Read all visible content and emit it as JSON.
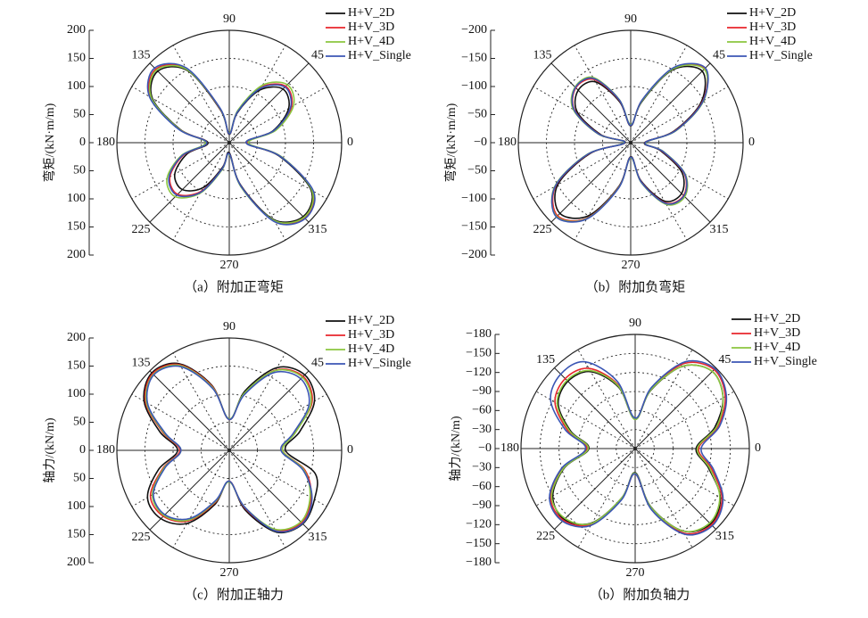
{
  "chart_data": [
    {
      "type": "polar",
      "caption": "（a）附加正弯矩",
      "ylabel": "弯矩/(kN·m/m)",
      "legend": "upper right",
      "x": [
        0,
        15,
        30,
        45,
        60,
        75,
        90,
        105,
        120,
        135,
        150,
        165,
        180,
        195,
        210,
        225,
        240,
        255,
        270,
        285,
        300,
        315,
        330,
        345
      ],
      "xticks": [
        0,
        45,
        90,
        135,
        180,
        225,
        270,
        315
      ],
      "ylim": [
        0,
        200
      ],
      "yticks": [
        0,
        50,
        100,
        150,
        200
      ],
      "series": [
        {
          "name": "H+V_2D",
          "color": "#111111",
          "values": [
            30,
            80,
            122,
            135,
            108,
            55,
            15,
            60,
            148,
            180,
            158,
            90,
            38,
            78,
            112,
            118,
            92,
            45,
            18,
            78,
            158,
            186,
            168,
            92
          ]
        },
        {
          "name": "H+V_3D",
          "color": "#e8262b",
          "values": [
            32,
            84,
            128,
            142,
            114,
            58,
            16,
            62,
            152,
            185,
            162,
            92,
            40,
            84,
            122,
            130,
            100,
            48,
            20,
            80,
            162,
            190,
            172,
            95
          ]
        },
        {
          "name": "H+V_4D",
          "color": "#8cc63f",
          "values": [
            34,
            86,
            132,
            146,
            118,
            60,
            17,
            63,
            150,
            183,
            160,
            92,
            42,
            88,
            128,
            136,
            104,
            50,
            21,
            82,
            160,
            188,
            170,
            96
          ]
        },
        {
          "name": "H+V_Single",
          "color": "#3b56b4",
          "values": [
            30,
            82,
            126,
            140,
            112,
            57,
            16,
            64,
            154,
            188,
            164,
            94,
            40,
            86,
            124,
            132,
            102,
            48,
            20,
            80,
            163,
            191,
            173,
            94
          ]
        }
      ]
    },
    {
      "type": "polar",
      "caption": "（b）附加负弯矩",
      "ylabel": "弯矩/(kN·m/m)",
      "legend": "upper right",
      "x": [
        0,
        15,
        30,
        45,
        60,
        75,
        90,
        105,
        120,
        135,
        150,
        165,
        180,
        195,
        210,
        225,
        240,
        255,
        270,
        285,
        300,
        315,
        330,
        345
      ],
      "xticks": [
        0,
        45,
        90,
        135,
        180,
        225,
        270,
        315
      ],
      "ylim": [
        0,
        -200
      ],
      "yticks": [
        {
          "value": 0,
          "label": "−0"
        },
        {
          "value": -50,
          "label": "−50"
        },
        {
          "value": -100,
          "label": "−100"
        },
        {
          "value": -150,
          "label": "−150"
        },
        {
          "value": -200,
          "label": "−200"
        }
      ],
      "series": [
        {
          "name": "H+V_2D",
          "color": "#111111",
          "values": [
            -25,
            -80,
            -145,
            -180,
            -150,
            -75,
            -30,
            -75,
            -125,
            -132,
            -110,
            -55,
            -10,
            -75,
            -150,
            -178,
            -150,
            -80,
            -25,
            -70,
            -120,
            -128,
            -105,
            -55
          ]
        },
        {
          "name": "H+V_3D",
          "color": "#e8262b",
          "values": [
            -26,
            -82,
            -148,
            -186,
            -154,
            -78,
            -31,
            -78,
            -130,
            -138,
            -115,
            -58,
            -11,
            -78,
            -154,
            -184,
            -155,
            -82,
            -26,
            -72,
            -124,
            -133,
            -110,
            -58
          ]
        },
        {
          "name": "H+V_4D",
          "color": "#8cc63f",
          "values": [
            -27,
            -84,
            -150,
            -185,
            -152,
            -77,
            -32,
            -80,
            -134,
            -140,
            -118,
            -60,
            -12,
            -80,
            -156,
            -186,
            -156,
            -83,
            -27,
            -74,
            -127,
            -136,
            -112,
            -60
          ]
        },
        {
          "name": "H+V_Single",
          "color": "#3b56b4",
          "values": [
            -26,
            -83,
            -149,
            -188,
            -155,
            -79,
            -31,
            -79,
            -132,
            -139,
            -116,
            -59,
            -11,
            -79,
            -155,
            -187,
            -157,
            -84,
            -26,
            -73,
            -125,
            -134,
            -111,
            -59
          ]
        }
      ]
    },
    {
      "type": "polar",
      "caption": "（c）附加正轴力",
      "ylabel": "轴力/(kN/m)",
      "legend": "upper right",
      "x": [
        0,
        15,
        30,
        45,
        60,
        75,
        90,
        105,
        120,
        135,
        150,
        165,
        180,
        195,
        210,
        225,
        240,
        255,
        270,
        285,
        300,
        315,
        330,
        345
      ],
      "xticks": [
        0,
        45,
        90,
        135,
        180,
        225,
        270,
        315
      ],
      "ylim": [
        0,
        200
      ],
      "yticks": [
        0,
        50,
        100,
        150,
        200
      ],
      "series": [
        {
          "name": "H+V_2D",
          "color": "#111111",
          "values": [
            100,
            130,
            175,
            190,
            170,
            110,
            55,
            120,
            178,
            195,
            175,
            128,
            92,
            130,
            168,
            172,
            150,
            100,
            55,
            110,
            168,
            185,
            175,
            158
          ]
        },
        {
          "name": "H+V_3D",
          "color": "#e8262b",
          "values": [
            95,
            120,
            170,
            186,
            165,
            105,
            55,
            118,
            176,
            193,
            172,
            122,
            88,
            122,
            162,
            166,
            145,
            96,
            55,
            106,
            164,
            182,
            168,
            140
          ]
        },
        {
          "name": "H+V_4D",
          "color": "#8cc63f",
          "values": [
            95,
            122,
            168,
            184,
            164,
            106,
            56,
            116,
            174,
            191,
            170,
            120,
            86,
            120,
            158,
            164,
            143,
            94,
            56,
            104,
            162,
            180,
            166,
            138
          ]
        },
        {
          "name": "H+V_Single",
          "color": "#3b56b4",
          "values": [
            92,
            118,
            164,
            180,
            160,
            102,
            55,
            114,
            172,
            190,
            168,
            118,
            86,
            118,
            156,
            162,
            140,
            92,
            55,
            104,
            166,
            184,
            170,
            136
          ]
        }
      ]
    },
    {
      "type": "polar",
      "caption": "（b）附加负轴力",
      "ylabel": "轴力/(kN/m)",
      "legend": "upper right",
      "x": [
        0,
        15,
        30,
        45,
        60,
        75,
        90,
        105,
        120,
        135,
        150,
        165,
        180,
        195,
        210,
        225,
        240,
        255,
        270,
        285,
        300,
        315,
        330,
        345
      ],
      "xticks": [
        0,
        45,
        90,
        135,
        180,
        225,
        270,
        315
      ],
      "ylim": [
        0,
        -180
      ],
      "yticks": [
        {
          "value": 0,
          "label": "−0"
        },
        {
          "value": -30,
          "label": "−30"
        },
        {
          "value": -60,
          "label": "−60"
        },
        {
          "value": -90,
          "label": "−90"
        },
        {
          "value": -120,
          "label": "−120"
        },
        {
          "value": -150,
          "label": "−150"
        },
        {
          "value": -180,
          "label": "−180"
        }
      ],
      "series": [
        {
          "name": "H+V_2D",
          "color": "#111111",
          "values": [
            -96,
            -130,
            -160,
            -172,
            -150,
            -95,
            -46,
            -100,
            -140,
            -150,
            -140,
            -105,
            -73,
            -115,
            -150,
            -158,
            -135,
            -80,
            -38,
            -95,
            -150,
            -168,
            -155,
            -120
          ]
        },
        {
          "name": "H+V_3D",
          "color": "#e8262b",
          "values": [
            -100,
            -135,
            -164,
            -176,
            -155,
            -98,
            -47,
            -104,
            -146,
            -156,
            -146,
            -110,
            -76,
            -118,
            -154,
            -160,
            -138,
            -82,
            -40,
            -98,
            -154,
            -170,
            -158,
            -125
          ]
        },
        {
          "name": "H+V_4D",
          "color": "#8cc63f",
          "values": [
            -98,
            -133,
            -160,
            -172,
            -150,
            -96,
            -46,
            -102,
            -142,
            -152,
            -142,
            -107,
            -74,
            -116,
            -152,
            -156,
            -136,
            -80,
            -39,
            -96,
            -150,
            -166,
            -154,
            -122
          ]
        },
        {
          "name": "H+V_Single",
          "color": "#3b56b4",
          "values": [
            -104,
            -138,
            -166,
            -178,
            -158,
            -100,
            -48,
            -110,
            -158,
            -166,
            -154,
            -114,
            -78,
            -120,
            -156,
            -162,
            -140,
            -84,
            -40,
            -100,
            -156,
            -172,
            -160,
            -128
          ]
        }
      ]
    }
  ]
}
